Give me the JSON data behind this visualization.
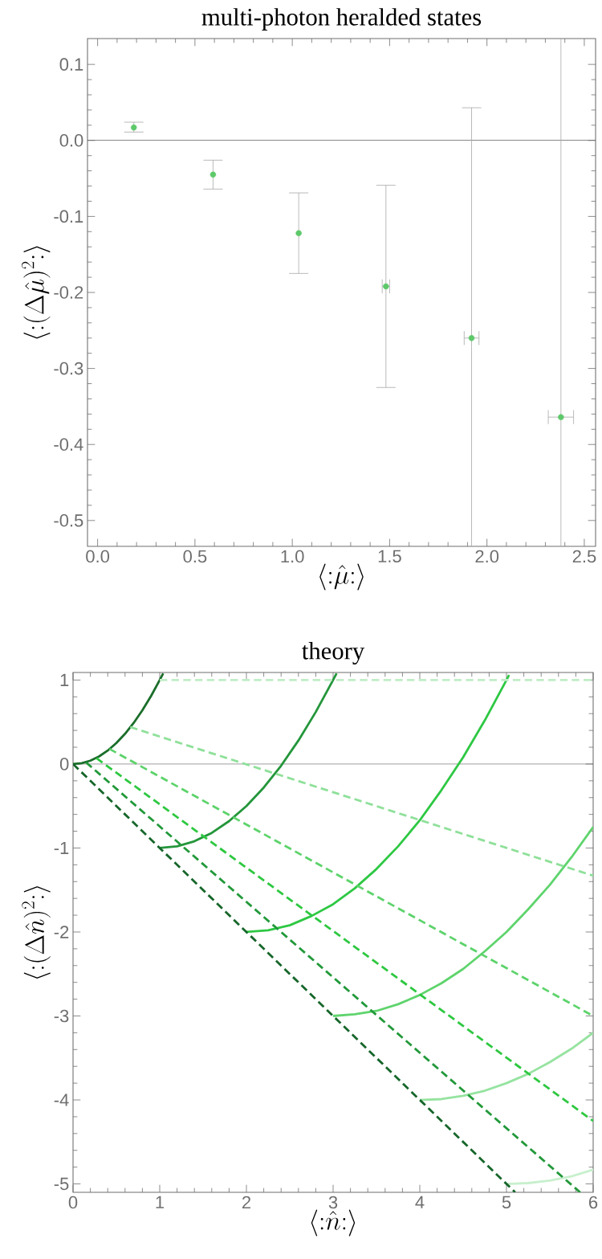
{
  "chart_data": [
    {
      "type": "scatter",
      "title": "multi-photon heralded states",
      "xlabel": "\\langle{:}\\hat{\\mu}{:}\\rangle",
      "ylabel": "\\langle{:}(\\Delta\\hat{\\mu})^2{:}\\rangle",
      "x": [
        0.186,
        0.593,
        1.033,
        1.481,
        1.921,
        2.38
      ],
      "values": [
        0.017,
        -0.045,
        -0.122,
        -0.192,
        -0.26,
        -0.364
      ],
      "errors": [
        [
          0.011,
          0.024
        ],
        0.019,
        0.053,
        0.133,
        [
          -0.534,
          0.043
        ],
        [
          -0.534,
          0.134
        ]
      ],
      "xerrors": [
        null,
        null,
        null,
        0.019,
        0.038,
        0.065
      ],
      "color": "#5ec96a",
      "marker": "circle",
      "xlim": [
        -0.052,
        2.558
      ],
      "ylim": [
        -0.534,
        0.134
      ],
      "xticks": [
        {
          "value": 0,
          "label": "0.0"
        },
        0.5,
        {
          "value": 1,
          "label": "1.0"
        },
        1.5,
        {
          "value": 2,
          "label": "2.0"
        },
        2.5
      ],
      "yticks": [
        0.1,
        {
          "value": 0,
          "label": "0.0"
        },
        -0.1,
        -0.2,
        -0.3,
        -0.4,
        -0.5
      ],
      "ref_lines": [
        {
          "axis": "y",
          "value": 0,
          "color": "#666666"
        }
      ]
    },
    {
      "type": "line",
      "title": "theory",
      "xlabel": "\\langle{:}\\hat{n}{:}\\rangle",
      "ylabel": "\\langle{:}(\\Delta\\hat{n})^2{:}\\rangle",
      "series": [
        {
          "color": "#1b6e2b",
          "line_style": "solid",
          "x": [
            0,
            0.1,
            0.2,
            0.3,
            0.4,
            0.5,
            0.6,
            0.7,
            0.8,
            0.9,
            1.0,
            1.04
          ],
          "values": [
            0,
            0.01,
            0.04,
            0.09,
            0.16,
            0.25,
            0.36,
            0.49,
            0.64,
            0.81,
            1.0,
            1.08
          ]
        },
        {
          "color": "#24963b",
          "line_style": "solid",
          "x": [
            1,
            1.2,
            1.4,
            1.6,
            1.8,
            2,
            2.2,
            2.4,
            2.6,
            2.8,
            3,
            3.04
          ],
          "values": [
            -1,
            -0.98,
            -0.92,
            -0.82,
            -0.68,
            -0.5,
            -0.28,
            -0.02,
            0.28,
            0.62,
            1.0,
            1.08
          ]
        },
        {
          "color": "#2ec843",
          "line_style": "solid",
          "x": [
            2,
            2.25,
            2.5,
            2.75,
            3,
            3.25,
            3.5,
            3.75,
            4,
            4.25,
            4.5,
            4.75,
            5,
            5.03
          ],
          "values": [
            -2,
            -1.98,
            -1.92,
            -1.81,
            -1.67,
            -1.48,
            -1.25,
            -0.98,
            -0.67,
            -0.31,
            0.08,
            0.52,
            1.0,
            1.06
          ]
        },
        {
          "color": "#5fd46d",
          "line_style": "solid",
          "x": [
            3,
            3.25,
            3.5,
            3.75,
            4,
            4.25,
            4.5,
            4.75,
            5,
            5.25,
            5.5,
            5.75,
            6
          ],
          "values": [
            -3,
            -2.98,
            -2.94,
            -2.86,
            -2.75,
            -2.61,
            -2.44,
            -2.23,
            -2,
            -1.73,
            -1.44,
            -1.11,
            -0.75
          ]
        },
        {
          "color": "#96e3a0",
          "line_style": "solid",
          "x": [
            4,
            4.25,
            4.5,
            4.75,
            5,
            5.25,
            5.5,
            5.75,
            6
          ],
          "values": [
            -4,
            -3.99,
            -3.95,
            -3.89,
            -3.8,
            -3.69,
            -3.55,
            -3.39,
            -3.2
          ]
        },
        {
          "color": "#c8f0cd",
          "line_style": "solid",
          "x": [
            5,
            5.25,
            5.5,
            5.75,
            6
          ],
          "values": [
            -5,
            -4.99,
            -4.96,
            -4.91,
            -4.83
          ]
        },
        {
          "color": "#c0edc6",
          "line_style": "dashed",
          "x": [
            1,
            6
          ],
          "values": [
            1,
            1
          ]
        },
        {
          "color": "#8fe09a",
          "line_style": "dashed",
          "x": [
            0.66,
            6
          ],
          "values": [
            0.44,
            -1.33
          ]
        },
        {
          "color": "#5dd36b",
          "line_style": "dashed",
          "x": [
            0.42,
            6
          ],
          "values": [
            0.18,
            -3
          ]
        },
        {
          "color": "#2ec840",
          "line_style": "dashed",
          "x": [
            0.27,
            6
          ],
          "values": [
            0.07,
            -4.25
          ]
        },
        {
          "color": "#22993a",
          "line_style": "dashed",
          "x": [
            0.15,
            5.85
          ],
          "values": [
            0.02,
            -5.1
          ]
        },
        {
          "color": "#16662a",
          "line_style": "dashed",
          "x": [
            0,
            5.1
          ],
          "values": [
            0,
            -5.1
          ]
        }
      ],
      "xlim": [
        0,
        6
      ],
      "ylim": [
        -5.1,
        1.09
      ],
      "xticks": [
        0,
        1,
        2,
        3,
        4,
        5,
        6
      ],
      "yticks": [
        -5,
        -4,
        -3,
        -2,
        -1,
        0,
        1
      ],
      "ref_lines": [
        {
          "axis": "y",
          "value": 0,
          "color": "#666666"
        }
      ]
    }
  ]
}
